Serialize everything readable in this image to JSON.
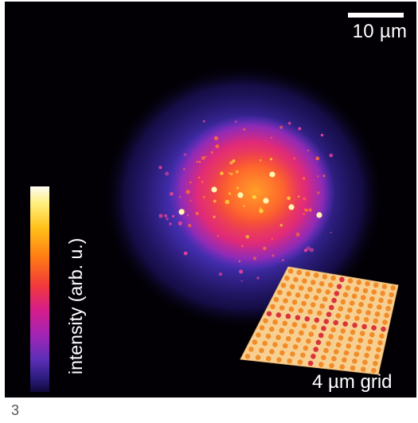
{
  "panel_number": "3",
  "scale_bar": {
    "label": "10 µm"
  },
  "colorbar": {
    "label": "intensity (arb. u.)"
  },
  "grid_inset": {
    "label": "4 µm grid",
    "rows": 13,
    "cols": 13,
    "highlight_row": 6,
    "highlight_col": 6
  },
  "colors": {
    "background": "#020005",
    "grid_dot": "#f28c28",
    "grid_dot_highlight": "#d9343a",
    "grid_plate": "#f7cf91"
  }
}
